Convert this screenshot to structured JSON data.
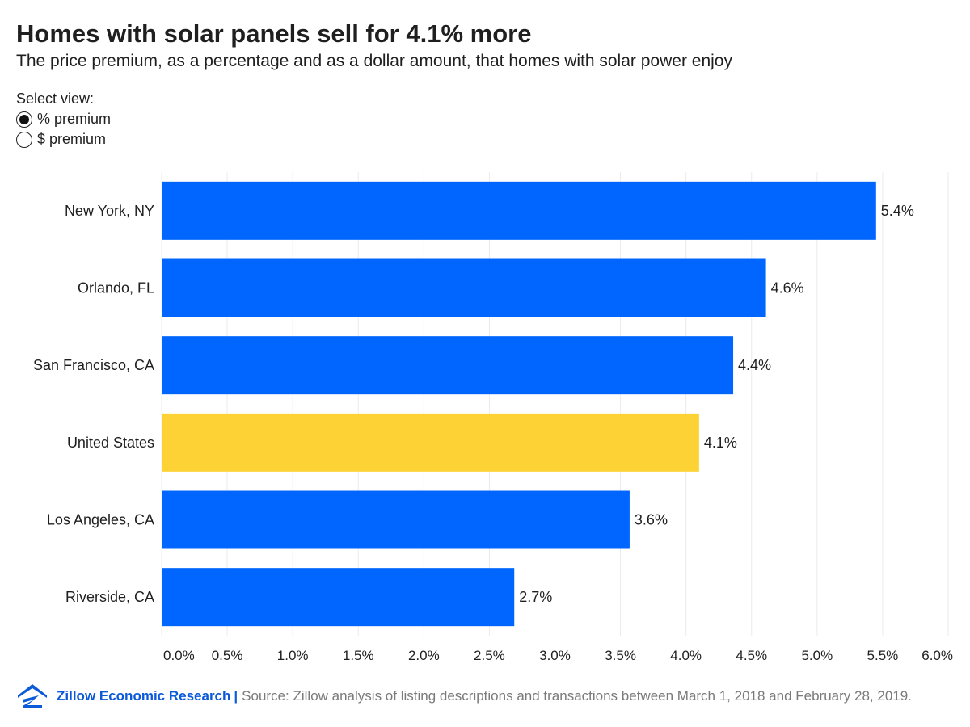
{
  "header": {
    "title": "Homes with solar panels sell for 4.1% more",
    "subtitle": "The price premium, as a percentage and as a dollar amount, that homes with solar power enjoy"
  },
  "view_select": {
    "label": "Select view:",
    "options": [
      {
        "label": "% premium",
        "selected": true
      },
      {
        "label": "$ premium",
        "selected": false
      }
    ]
  },
  "chart_data": {
    "type": "bar",
    "orientation": "horizontal",
    "categories": [
      "New York, NY",
      "Orlando, FL",
      "San Francisco, CA",
      "United States",
      "Los Angeles, CA",
      "Riverside, CA"
    ],
    "values": [
      5.45,
      4.61,
      4.36,
      4.1,
      3.57,
      2.69
    ],
    "data_labels": [
      "5.4%",
      "4.6%",
      "4.4%",
      "4.1%",
      "3.6%",
      "2.7%"
    ],
    "highlight": "United States",
    "x_ticks": [
      0,
      0.5,
      1,
      1.5,
      2,
      2.5,
      3,
      3.5,
      4,
      4.5,
      5,
      5.5,
      6
    ],
    "x_tick_labels": [
      "0.0%",
      "0.5%",
      "1.0%",
      "1.5%",
      "2.0%",
      "2.5%",
      "3.0%",
      "3.5%",
      "4.0%",
      "4.5%",
      "5.0%",
      "5.5%",
      "6.0%"
    ],
    "xlim": [
      0,
      6
    ],
    "grid": true,
    "colors": {
      "bar": "#0066ff",
      "highlight": "#fdd235",
      "grid": "#ebebeb"
    }
  },
  "footer": {
    "brand": "Zillow Economic Research",
    "separator": "|",
    "source": "Source: Zillow analysis of listing descriptions and transactions between March 1, 2018 and February 28, 2019.",
    "logo_icon": "zillow-logo-icon"
  }
}
